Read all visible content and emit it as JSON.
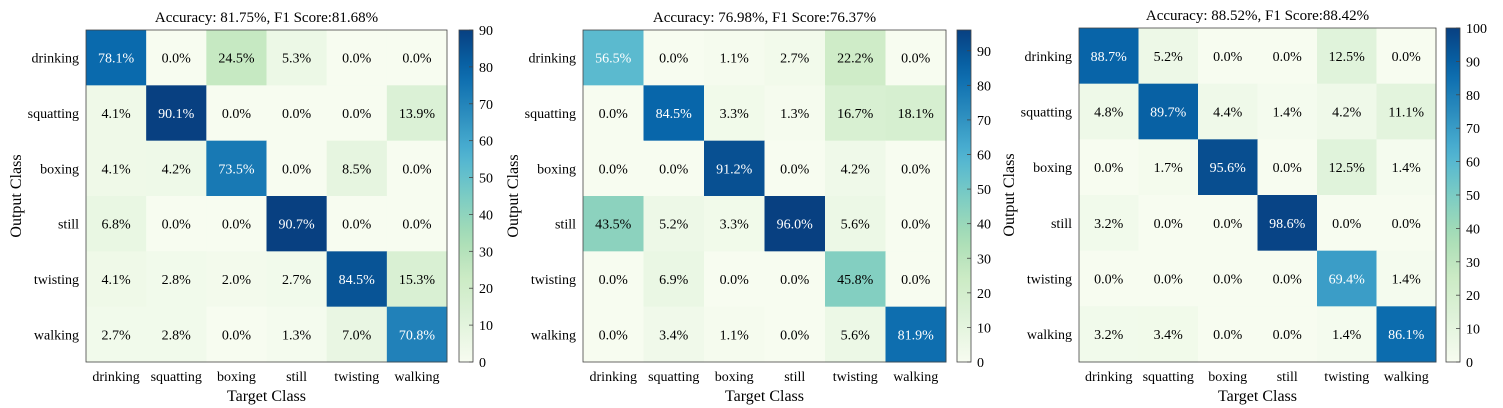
{
  "chart_data": [
    {
      "type": "heatmap",
      "title": "Accuracy: 81.75%, F1 Score:81.68%",
      "xlabel": "Target Class",
      "ylabel": "Output Class",
      "categories": [
        "drinking",
        "squatting",
        "boxing",
        "still",
        "twisting",
        "walking"
      ],
      "values": [
        [
          78.1,
          0.0,
          24.5,
          5.3,
          0.0,
          0.0
        ],
        [
          4.1,
          90.1,
          0.0,
          0.0,
          0.0,
          13.9
        ],
        [
          4.1,
          4.2,
          73.5,
          0.0,
          8.5,
          0.0
        ],
        [
          6.8,
          0.0,
          0.0,
          90.7,
          0.0,
          0.0
        ],
        [
          4.1,
          2.8,
          2.0,
          2.7,
          84.5,
          15.3
        ],
        [
          2.7,
          2.8,
          0.0,
          1.3,
          7.0,
          70.8
        ]
      ],
      "colorbar": {
        "min": 0,
        "max": 90,
        "ticks": [
          0,
          10,
          20,
          30,
          40,
          50,
          60,
          70,
          80,
          90
        ]
      },
      "grid": false
    },
    {
      "type": "heatmap",
      "title": "Accuracy: 76.98%, F1 Score:76.37%",
      "xlabel": "Target Class",
      "ylabel": "Output Class",
      "categories": [
        "drinking",
        "squatting",
        "boxing",
        "still",
        "twisting",
        "walking"
      ],
      "values": [
        [
          56.5,
          0.0,
          1.1,
          2.7,
          22.2,
          0.0
        ],
        [
          0.0,
          84.5,
          3.3,
          1.3,
          16.7,
          18.1
        ],
        [
          0.0,
          0.0,
          91.2,
          0.0,
          4.2,
          0.0
        ],
        [
          43.5,
          5.2,
          3.3,
          96.0,
          5.6,
          0.0
        ],
        [
          0.0,
          6.9,
          0.0,
          0.0,
          45.8,
          0.0
        ],
        [
          0.0,
          3.4,
          1.1,
          0.0,
          5.6,
          81.9
        ]
      ],
      "colorbar": {
        "min": 0,
        "max": 96,
        "ticks": [
          0,
          10,
          20,
          30,
          40,
          50,
          60,
          70,
          80,
          90
        ]
      },
      "grid": false
    },
    {
      "type": "heatmap",
      "title": "Accuracy: 88.52%, F1 Score:88.42%",
      "xlabel": "Target Class",
      "ylabel": "Output Class",
      "categories": [
        "drinking",
        "squatting",
        "boxing",
        "still",
        "twisting",
        "walking"
      ],
      "values": [
        [
          88.7,
          5.2,
          0.0,
          0.0,
          12.5,
          0.0
        ],
        [
          4.8,
          89.7,
          4.4,
          1.4,
          4.2,
          11.1
        ],
        [
          0.0,
          1.7,
          95.6,
          0.0,
          12.5,
          1.4
        ],
        [
          3.2,
          0.0,
          0.0,
          98.6,
          0.0,
          0.0
        ],
        [
          0.0,
          0.0,
          0.0,
          0.0,
          69.4,
          1.4
        ],
        [
          3.2,
          3.4,
          0.0,
          0.0,
          1.4,
          86.1
        ]
      ],
      "colorbar": {
        "min": 0,
        "max": 100,
        "ticks": [
          0,
          10,
          20,
          30,
          40,
          50,
          60,
          70,
          80,
          90,
          100
        ]
      },
      "grid": false
    }
  ]
}
